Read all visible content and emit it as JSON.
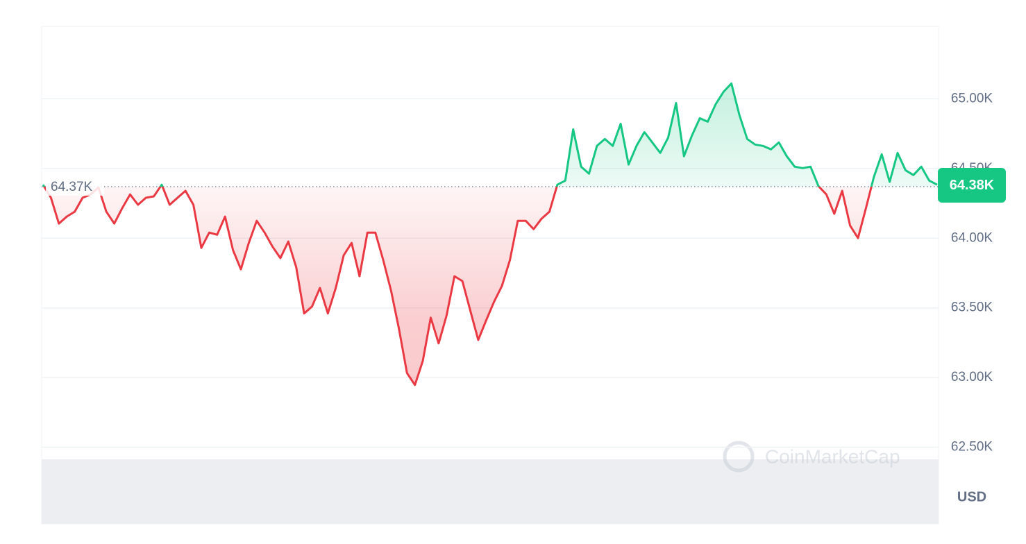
{
  "chart_data": {
    "type": "line",
    "values": [
      64384,
      64290,
      64105,
      64155,
      64190,
      64290,
      64314,
      64364,
      64190,
      64105,
      64215,
      64314,
      64240,
      64290,
      64300,
      64384,
      64240,
      64290,
      64340,
      64240,
      63930,
      64040,
      64025,
      64155,
      63915,
      63777,
      63966,
      64125,
      64040,
      63940,
      63857,
      63976,
      63792,
      63460,
      63510,
      63643,
      63460,
      63643,
      63877,
      63966,
      63727,
      64040,
      64040,
      63842,
      63620,
      63345,
      63032,
      62947,
      63120,
      63430,
      63245,
      63445,
      63727,
      63692,
      63480,
      63270,
      63410,
      63544,
      63658,
      63842,
      64125,
      64125,
      64065,
      64140,
      64190,
      64384,
      64413,
      64781,
      64513,
      64463,
      64662,
      64712,
      64662,
      64821,
      64528,
      64662,
      64761,
      64687,
      64612,
      64722,
      64970,
      64588,
      64736,
      64861,
      64836,
      64960,
      65050,
      65110,
      64886,
      64712,
      64672,
      64662,
      64637,
      64687,
      64588,
      64513,
      64503,
      64513,
      64374,
      64314,
      64175,
      64340,
      64090,
      64001,
      64215,
      64438,
      64602,
      64404,
      64612,
      64488,
      64453,
      64513,
      64413,
      64384
    ],
    "up_color": "#16c784",
    "down_color": "#ea3943",
    "ylim": [
      61950,
      65520
    ],
    "yticks": [
      {
        "value": 62500,
        "label": "62.50K"
      },
      {
        "value": 63000,
        "label": "63.00K"
      },
      {
        "value": 63500,
        "label": "63.50K"
      },
      {
        "value": 64000,
        "label": "64.00K"
      },
      {
        "value": 64500,
        "label": "64.50K"
      },
      {
        "value": 65000,
        "label": "65.00K"
      }
    ],
    "grid": true,
    "baseline": {
      "value": 64370,
      "label": "64.37K"
    },
    "last_price": {
      "value": 64380,
      "label": "64.38K"
    },
    "currency": "USD",
    "watermark": "CoinMarketCap"
  }
}
